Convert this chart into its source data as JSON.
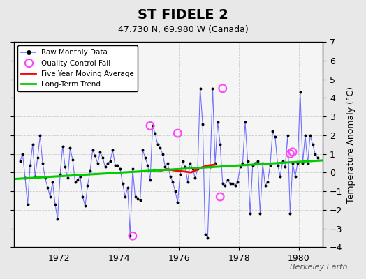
{
  "title": "ST FIDELE 2",
  "subtitle": "47.730 N, 69.980 W (Canada)",
  "ylabel": "Temperature Anomaly (°C)",
  "watermark": "Berkeley Earth",
  "background_color": "#e8e8e8",
  "plot_bg_color": "#f5f5f5",
  "ylim": [
    -4,
    7
  ],
  "yticks": [
    -4,
    -3,
    -2,
    -1,
    0,
    1,
    2,
    3,
    4,
    5,
    6,
    7
  ],
  "xlim": [
    1970.5,
    1980.8
  ],
  "xticks": [
    1972,
    1974,
    1976,
    1978,
    1980
  ],
  "raw_x": [
    1970.708,
    1970.792,
    1970.875,
    1970.958,
    1971.042,
    1971.125,
    1971.208,
    1971.292,
    1971.375,
    1971.458,
    1971.542,
    1971.625,
    1971.708,
    1971.792,
    1971.875,
    1971.958,
    1972.042,
    1972.125,
    1972.208,
    1972.292,
    1972.375,
    1972.458,
    1972.542,
    1972.625,
    1972.708,
    1972.792,
    1972.875,
    1972.958,
    1973.042,
    1973.125,
    1973.208,
    1973.292,
    1973.375,
    1973.458,
    1973.542,
    1973.625,
    1973.708,
    1973.792,
    1973.875,
    1973.958,
    1974.042,
    1974.125,
    1974.208,
    1974.292,
    1974.375,
    1974.458,
    1974.542,
    1974.625,
    1974.708,
    1974.792,
    1974.875,
    1974.958,
    1975.042,
    1975.125,
    1975.208,
    1975.292,
    1975.375,
    1975.458,
    1975.542,
    1975.625,
    1975.708,
    1975.792,
    1975.875,
    1975.958,
    1976.042,
    1976.125,
    1976.208,
    1976.292,
    1976.375,
    1976.458,
    1976.542,
    1976.625,
    1976.708,
    1976.792,
    1976.875,
    1976.958,
    1977.042,
    1977.125,
    1977.208,
    1977.292,
    1977.375,
    1977.458,
    1977.542,
    1977.625,
    1977.708,
    1977.792,
    1977.875,
    1977.958,
    1978.042,
    1978.125,
    1978.208,
    1978.292,
    1978.375,
    1978.458,
    1978.542,
    1978.625,
    1978.708,
    1978.792,
    1978.875,
    1978.958,
    1979.042,
    1979.125,
    1979.208,
    1979.292,
    1979.375,
    1979.458,
    1979.542,
    1979.625,
    1979.708,
    1979.792,
    1979.875,
    1979.958,
    1980.042,
    1980.125,
    1980.208,
    1980.292,
    1980.375,
    1980.458,
    1980.542,
    1980.625
  ],
  "raw_y": [
    0.6,
    1.0,
    -0.3,
    -1.7,
    0.4,
    1.5,
    -0.2,
    0.8,
    2.0,
    0.5,
    -0.3,
    -0.8,
    -1.3,
    -0.5,
    -1.7,
    -2.5,
    -0.1,
    1.4,
    0.3,
    -0.3,
    1.3,
    0.7,
    -0.5,
    -0.4,
    -0.2,
    -1.3,
    -1.8,
    -0.7,
    0.1,
    1.2,
    0.9,
    0.5,
    1.1,
    0.8,
    0.3,
    0.5,
    0.6,
    1.2,
    0.4,
    0.4,
    0.2,
    -0.6,
    -1.3,
    -0.8,
    -3.4,
    0.2,
    -1.3,
    -1.4,
    -1.5,
    1.2,
    0.8,
    0.4,
    -0.4,
    2.5,
    2.1,
    1.5,
    1.3,
    1.0,
    0.3,
    0.5,
    -0.2,
    -0.5,
    -1.0,
    -1.6,
    -0.1,
    0.6,
    0.3,
    -0.5,
    0.5,
    0.2,
    -0.3,
    0.2,
    4.5,
    2.6,
    -3.3,
    -3.5,
    0.3,
    4.5,
    0.5,
    2.7,
    1.5,
    -0.6,
    -0.7,
    -0.4,
    -0.6,
    -0.6,
    -0.7,
    -0.5,
    0.3,
    0.5,
    2.7,
    0.6,
    -2.2,
    0.4,
    0.5,
    0.6,
    -2.2,
    0.5,
    -0.7,
    -0.5,
    0.4,
    2.2,
    1.9,
    0.4,
    -0.2,
    0.6,
    0.3,
    2.0,
    -2.2,
    0.5,
    -0.2,
    0.5,
    4.3,
    0.5,
    2.0,
    0.5,
    2.0,
    1.5,
    1.0,
    0.8
  ],
  "qc_x": [
    1974.458,
    1975.958,
    1975.042,
    1977.375,
    1977.458,
    1979.708,
    1979.792
  ],
  "qc_y": [
    -3.4,
    2.1,
    2.5,
    -1.3,
    4.5,
    1.0,
    1.1
  ],
  "moving_avg_x": [
    1975.2,
    1975.4,
    1975.6,
    1975.8,
    1976.0,
    1976.2,
    1976.4,
    1976.6,
    1976.8,
    1977.0,
    1977.2
  ],
  "moving_avg_y": [
    0.15,
    0.1,
    0.18,
    0.12,
    0.08,
    0.05,
    0.0,
    0.15,
    0.3,
    0.38,
    0.42
  ],
  "trend_x": [
    1970.5,
    1980.8
  ],
  "trend_y": [
    -0.35,
    0.65
  ],
  "line_color": "#7070ff",
  "dot_color": "#000000",
  "qc_color": "#ff44ff",
  "moving_avg_color": "#ff0000",
  "trend_color": "#00cc00",
  "grid_color": "#cccccc"
}
